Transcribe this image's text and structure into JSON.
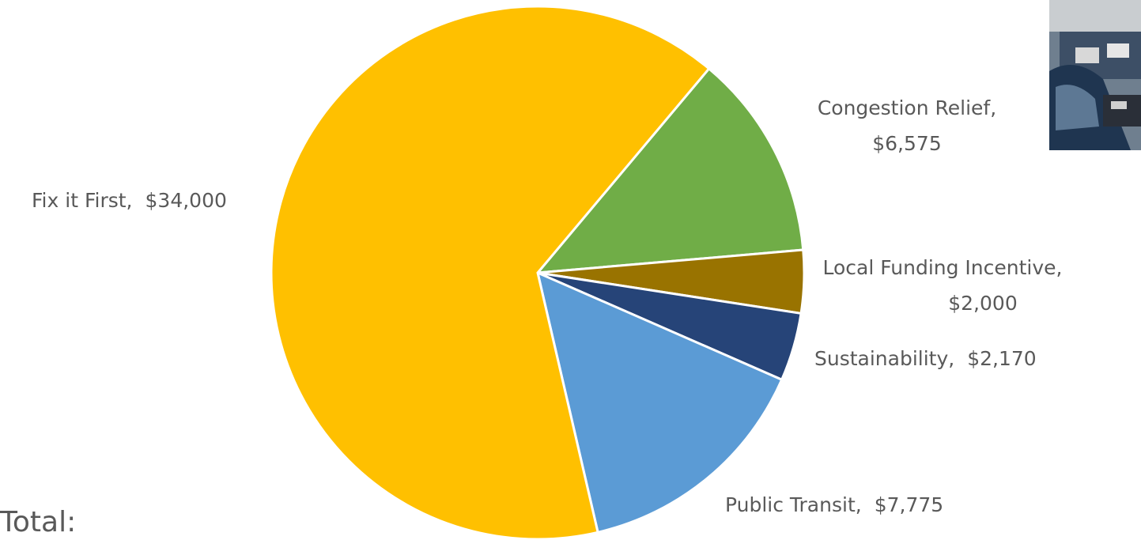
{
  "chart_data": {
    "type": "pie",
    "categories": [
      "Congestion Relief,",
      "Local Funding Incentive,",
      "Sustainability,",
      "Public Transit,",
      "Fix it First,"
    ],
    "values": [
      6575,
      2000,
      2170,
      7775,
      34000
    ],
    "value_labels": [
      "$6,575",
      "$2,000",
      "$2,170",
      "$7,775",
      "$34,000"
    ],
    "colors": [
      "#70ad47",
      "#997300",
      "#264478",
      "#5b9bd5",
      "#ffc000"
    ],
    "start_angle": 40,
    "total_label": "Total:"
  }
}
